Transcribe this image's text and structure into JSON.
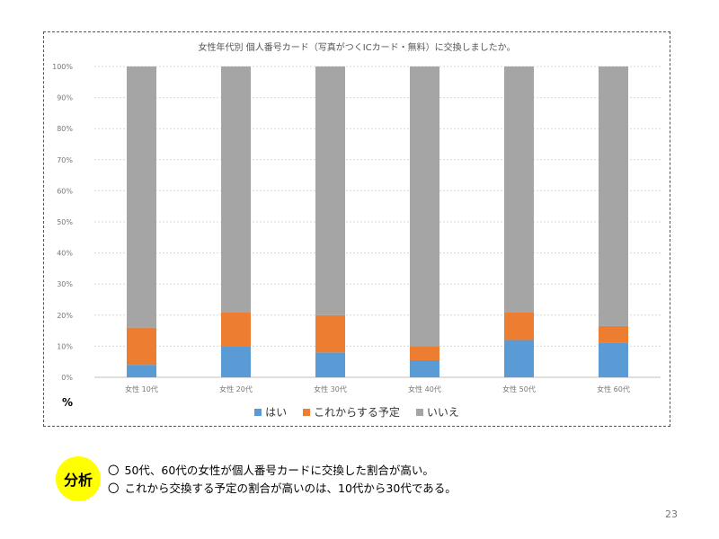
{
  "chart_data": {
    "type": "bar",
    "stacked": true,
    "title": "女性年代別 個人番号カード（写真がつくICカード・無料）に交換しましたか。",
    "categories": [
      "女性 10代",
      "女性 20代",
      "女性 30代",
      "女性 40代",
      "女性 50代",
      "女性 60代"
    ],
    "series": [
      {
        "name": "はい",
        "color": "#5b9bd5",
        "values": [
          4,
          10,
          8,
          5.5,
          12,
          11
        ]
      },
      {
        "name": "これからする予定",
        "color": "#ed7d31",
        "values": [
          12,
          11,
          12,
          4.5,
          9,
          5.5
        ]
      },
      {
        "name": "いいえ",
        "color": "#a5a5a5",
        "values": [
          84,
          79,
          80,
          90,
          79,
          83.5
        ]
      }
    ],
    "yticks": [
      "0%",
      "10%",
      "20%",
      "30%",
      "40%",
      "50%",
      "60%",
      "70%",
      "80%",
      "90%",
      "100%"
    ],
    "ylim": [
      0,
      100
    ],
    "ylabel": "%",
    "grid": true,
    "legend": "bottom"
  },
  "analysis": {
    "badge": "分析",
    "bullet": "〇",
    "lines": [
      "50代、60代の女性が個人番号カードに交換した割合が高い。",
      "これから交換する予定の割合が高いのは、10代から30代である。"
    ]
  },
  "page_number": "23"
}
